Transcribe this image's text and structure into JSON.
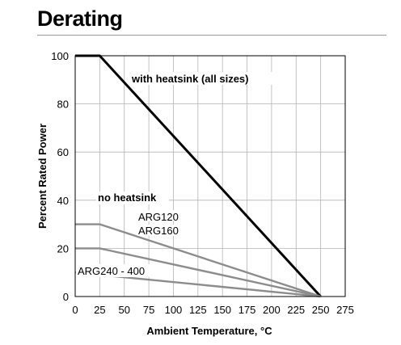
{
  "header": {
    "title": "Derating"
  },
  "chart_data": {
    "type": "line",
    "xlabel": "Ambient Temperature, °C",
    "ylabel": "Percent Rated Power",
    "xlim": [
      0,
      275
    ],
    "ylim": [
      0,
      100
    ],
    "xticks": [
      0,
      25,
      50,
      75,
      100,
      125,
      150,
      175,
      200,
      225,
      250,
      275
    ],
    "yticks": [
      0,
      20,
      40,
      60,
      80,
      100
    ],
    "grid": true,
    "series": [
      {
        "name": "with heatsink (all sizes)",
        "color": "#000000",
        "x": [
          0,
          25,
          250
        ],
        "y": [
          100,
          100,
          0
        ]
      },
      {
        "name": "ARG120",
        "color": "#8c8c8c",
        "x": [
          0,
          25,
          250
        ],
        "y": [
          30,
          30,
          0
        ]
      },
      {
        "name": "ARG160",
        "color": "#8c8c8c",
        "x": [
          0,
          25,
          250
        ],
        "y": [
          20,
          20,
          0
        ]
      },
      {
        "name": "ARG240 - 400",
        "color": "#8c8c8c",
        "x": [
          0,
          250
        ],
        "y": [
          10,
          0
        ]
      }
    ],
    "annotations": {
      "heatsink": "with heatsink (all sizes)",
      "no_heatsink": "no heatsink",
      "arg120": "ARG120",
      "arg160": "ARG160",
      "arg240": "ARG240 - 400"
    }
  }
}
